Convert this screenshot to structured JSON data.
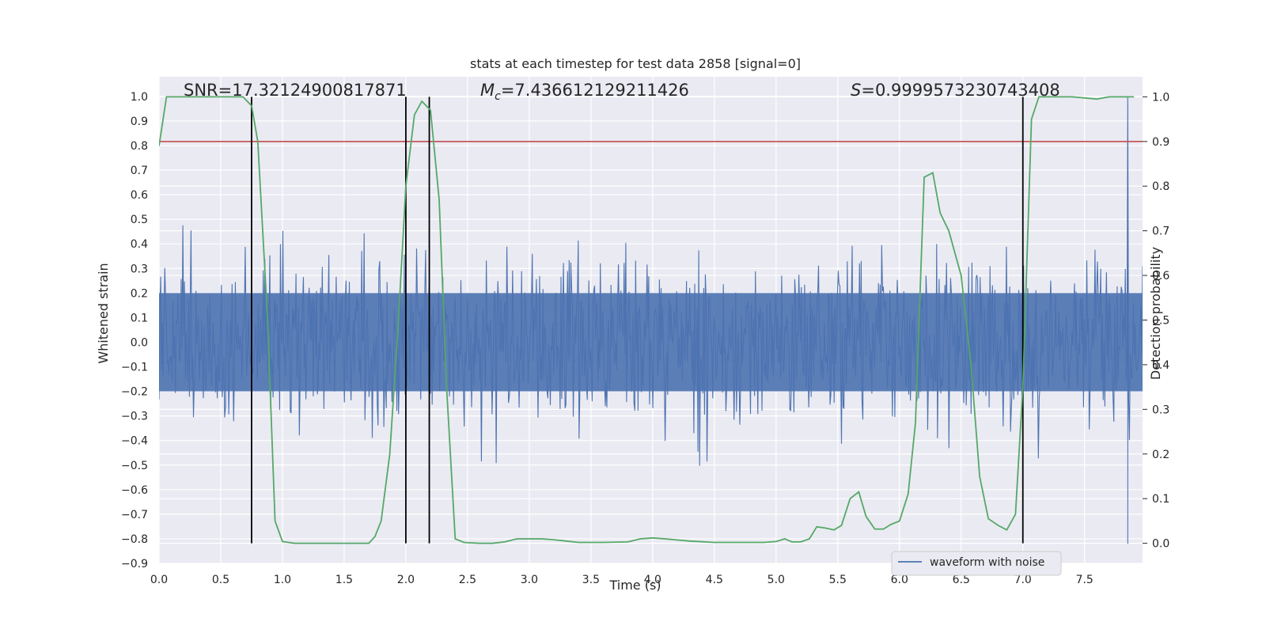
{
  "chart_data": {
    "type": "line",
    "title": "stats at each timestep for test data 2858 [signal=0]",
    "xlabel": "Time (s)",
    "ylabel": "Whitened strain",
    "y2label": "Detection probability",
    "xlim": [
      0.0,
      7.97
    ],
    "ylim": [
      -0.9,
      1.08
    ],
    "y2lim": [
      -0.045,
      1.045
    ],
    "xticks": [
      "0.0",
      "0.5",
      "1.0",
      "1.5",
      "2.0",
      "2.5",
      "3.0",
      "3.5",
      "4.0",
      "4.5",
      "5.0",
      "5.5",
      "6.0",
      "6.5",
      "7.0",
      "7.5"
    ],
    "yticks": [
      "1.0",
      "0.9",
      "0.8",
      "0.7",
      "0.6",
      "0.5",
      "0.4",
      "0.3",
      "0.2",
      "0.1",
      "0.0",
      "−0.1",
      "−0.2",
      "−0.3",
      "−0.4",
      "−0.5",
      "−0.6",
      "−0.7",
      "−0.8",
      "−0.9"
    ],
    "y2ticks": [
      "1.0",
      "0.9",
      "0.8",
      "0.7",
      "0.6",
      "0.5",
      "0.4",
      "0.3",
      "0.2",
      "0.1",
      "0.0"
    ],
    "grid": true,
    "legend_position": "bottom-right",
    "annotations": {
      "snr": "SNR=17.32124900817871",
      "mc": "=7.436612129211426",
      "s": "=0.9999573230743408"
    },
    "series": [
      {
        "name": "waveform with noise",
        "color": "#4c72b0",
        "axis": "left",
        "description_values": "dense noise, amplitude mostly within ±0.3, spikes to ±0.6, single spike at t=7.85 reaching 1.0 / -0.82"
      },
      {
        "name": "",
        "color": "#55a868",
        "axis": "right",
        "x": [
          0.0,
          0.06,
          0.12,
          0.2,
          0.3,
          0.4,
          0.5,
          0.6,
          0.68,
          0.75,
          0.8,
          0.88,
          0.94,
          1.0,
          1.1,
          1.2,
          1.4,
          1.6,
          1.7,
          1.75,
          1.8,
          1.87,
          1.94,
          2.0,
          2.07,
          2.13,
          2.2,
          2.27,
          2.33,
          2.4,
          2.47,
          2.6,
          2.7,
          2.8,
          2.9,
          3.0,
          3.1,
          3.2,
          3.3,
          3.4,
          3.6,
          3.8,
          3.9,
          4.0,
          4.1,
          4.3,
          4.5,
          4.7,
          4.9,
          5.0,
          5.07,
          5.13,
          5.2,
          5.27,
          5.33,
          5.4,
          5.47,
          5.53,
          5.6,
          5.67,
          5.73,
          5.8,
          5.87,
          5.93,
          6.0,
          6.07,
          6.13,
          6.2,
          6.27,
          6.33,
          6.4,
          6.5,
          6.58,
          6.65,
          6.72,
          6.8,
          6.87,
          6.94,
          7.0,
          7.07,
          7.13,
          7.2,
          7.4,
          7.6,
          7.7,
          7.8,
          7.9
        ],
        "y": [
          0.89,
          1.0,
          1.0,
          1.0,
          1.0,
          1.0,
          1.0,
          1.0,
          1.0,
          0.98,
          0.9,
          0.5,
          0.05,
          0.004,
          0.0,
          0.0,
          0.0,
          0.0,
          0.0,
          0.015,
          0.05,
          0.2,
          0.5,
          0.8,
          0.96,
          0.99,
          0.97,
          0.77,
          0.35,
          0.01,
          0.002,
          0.0,
          0.0,
          0.003,
          0.01,
          0.01,
          0.01,
          0.008,
          0.005,
          0.002,
          0.002,
          0.003,
          0.01,
          0.012,
          0.01,
          0.005,
          0.002,
          0.002,
          0.002,
          0.004,
          0.01,
          0.003,
          0.003,
          0.01,
          0.037,
          0.034,
          0.03,
          0.04,
          0.1,
          0.115,
          0.06,
          0.032,
          0.032,
          0.042,
          0.05,
          0.11,
          0.27,
          0.82,
          0.83,
          0.74,
          0.7,
          0.6,
          0.4,
          0.15,
          0.055,
          0.04,
          0.03,
          0.065,
          0.35,
          0.95,
          1.0,
          1.0,
          1.0,
          0.995,
          1.0,
          1.0,
          1.0
        ]
      }
    ],
    "threshold": {
      "color": "#c44e52",
      "y2": 0.9
    },
    "event_lines": {
      "color": "#000000",
      "x": [
        0.75,
        2.0,
        2.19,
        7.0
      ]
    },
    "noise": {
      "seed": 2858,
      "sigma": 0.16,
      "points": 1200,
      "spike": {
        "x": 7.85,
        "top": 1.0,
        "bottom": -0.82
      }
    }
  }
}
